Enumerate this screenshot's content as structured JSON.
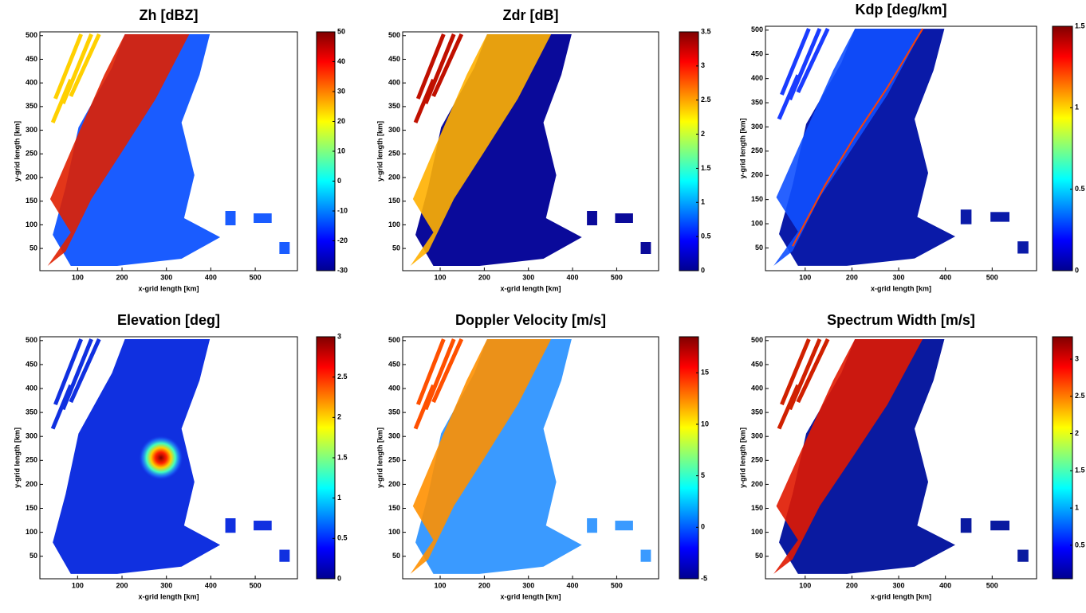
{
  "chart_data": [
    {
      "type": "heatmap",
      "title": "Zh [dBZ]",
      "xlabel": "x-grid length [km]",
      "ylabel": "y-grid length [km]",
      "xlim": [
        15,
        595
      ],
      "ylim": [
        3,
        508
      ],
      "xticks": [
        100,
        200,
        300,
        400,
        500
      ],
      "yticks": [
        50,
        100,
        150,
        200,
        250,
        300,
        350,
        400,
        450,
        500
      ],
      "colormap": "jet",
      "clim": [
        -30,
        50
      ],
      "cticks": [
        -30,
        -20,
        -10,
        0,
        10,
        20,
        30,
        40,
        50
      ]
    },
    {
      "type": "heatmap",
      "title": "Zdr [dB]",
      "xlabel": "x-grid length [km]",
      "ylabel": "y-grid length [km]",
      "xlim": [
        15,
        595
      ],
      "ylim": [
        3,
        508
      ],
      "xticks": [
        100,
        200,
        300,
        400,
        500
      ],
      "yticks": [
        50,
        100,
        150,
        200,
        250,
        300,
        350,
        400,
        450,
        500
      ],
      "colormap": "jet",
      "clim": [
        0,
        3.5
      ],
      "cticks": [
        0,
        0.5,
        1,
        1.5,
        2,
        2.5,
        3,
        3.5
      ]
    },
    {
      "type": "heatmap",
      "title": "Kdp [deg/km]",
      "xlabel": "x-grid length [km]",
      "ylabel": "y-grid length [km]",
      "xlim": [
        15,
        595
      ],
      "ylim": [
        3,
        508
      ],
      "xticks": [
        100,
        200,
        300,
        400,
        500
      ],
      "yticks": [
        50,
        100,
        150,
        200,
        250,
        300,
        350,
        400,
        450,
        500
      ],
      "colormap": "jet",
      "clim": [
        0,
        1.5
      ],
      "cticks": [
        0,
        0.5,
        1,
        1.5
      ]
    },
    {
      "type": "heatmap",
      "title": "Elevation [deg]",
      "xlabel": "x-grid length [km]",
      "ylabel": "y-grid length [km]",
      "xlim": [
        15,
        595
      ],
      "ylim": [
        3,
        508
      ],
      "xticks": [
        100,
        200,
        300,
        400,
        500
      ],
      "yticks": [
        50,
        100,
        150,
        200,
        250,
        300,
        350,
        400,
        450,
        500
      ],
      "colormap": "jet",
      "clim": [
        0,
        3
      ],
      "cticks": [
        0,
        0.5,
        1,
        1.5,
        2,
        2.5,
        3
      ]
    },
    {
      "type": "heatmap",
      "title": "Doppler Velocity [m/s]",
      "xlabel": "x-grid length [km]",
      "ylabel": "y-grid length [km]",
      "xlim": [
        15,
        595
      ],
      "ylim": [
        3,
        508
      ],
      "xticks": [
        100,
        200,
        300,
        400,
        500
      ],
      "yticks": [
        50,
        100,
        150,
        200,
        250,
        300,
        350,
        400,
        450,
        500
      ],
      "colormap": "jet",
      "clim": [
        -5,
        18.5
      ],
      "cticks": [
        -5,
        0,
        5,
        10,
        15
      ]
    },
    {
      "type": "heatmap",
      "title": "Spectrum Width [m/s]",
      "xlabel": "x-grid length [km]",
      "ylabel": "y-grid length [km]",
      "xlim": [
        15,
        595
      ],
      "ylim": [
        3,
        508
      ],
      "xticks": [
        100,
        200,
        300,
        400,
        500
      ],
      "yticks": [
        50,
        100,
        150,
        200,
        250,
        300,
        350,
        400,
        450,
        500
      ],
      "colormap": "jet",
      "clim": [
        0.05,
        3.3
      ],
      "cticks": [
        0.5,
        1,
        1.5,
        2,
        2.5,
        3
      ]
    }
  ]
}
